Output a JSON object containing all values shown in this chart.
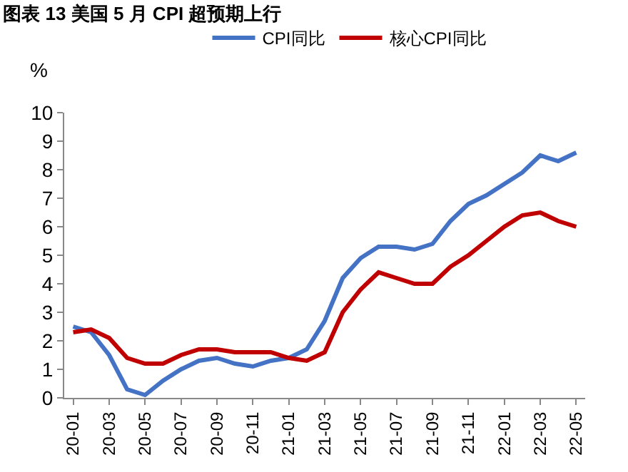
{
  "chart_data": {
    "type": "line",
    "title": "图表 13 美国 5 月 CPI 超预期上行",
    "ylabel": "%",
    "categories": [
      "20-01",
      null,
      "20-03",
      null,
      "20-05",
      null,
      "20-07",
      null,
      "20-09",
      null,
      "20-11",
      null,
      "21-01",
      null,
      "21-03",
      null,
      "21-05",
      null,
      "21-07",
      null,
      "21-09",
      null,
      "21-11",
      null,
      "22-01",
      null,
      "22-03",
      null,
      "22-05"
    ],
    "series": [
      {
        "name": "CPI同比",
        "color": "#4472c4",
        "values": [
          2.5,
          2.3,
          1.5,
          0.3,
          0.1,
          0.6,
          1.0,
          1.3,
          1.4,
          1.2,
          1.1,
          1.3,
          1.4,
          1.7,
          2.7,
          4.2,
          4.9,
          5.3,
          5.3,
          5.2,
          5.4,
          6.2,
          6.8,
          7.1,
          7.5,
          7.9,
          8.5,
          8.3,
          8.6
        ]
      },
      {
        "name": "核心CPI同比",
        "color": "#c00000",
        "values": [
          2.3,
          2.4,
          2.1,
          1.4,
          1.2,
          1.2,
          1.5,
          1.7,
          1.7,
          1.6,
          1.6,
          1.6,
          1.4,
          1.3,
          1.6,
          3.0,
          3.8,
          4.4,
          4.2,
          4.0,
          4.0,
          4.6,
          5.0,
          5.5,
          6.0,
          6.4,
          6.5,
          6.2,
          6.0
        ]
      }
    ],
    "ylim": [
      0,
      10
    ],
    "yticks": [
      0,
      1,
      2,
      3,
      4,
      5,
      6,
      7,
      8,
      9,
      10
    ],
    "legend": "top",
    "marker": "none",
    "line_style": "solid"
  }
}
